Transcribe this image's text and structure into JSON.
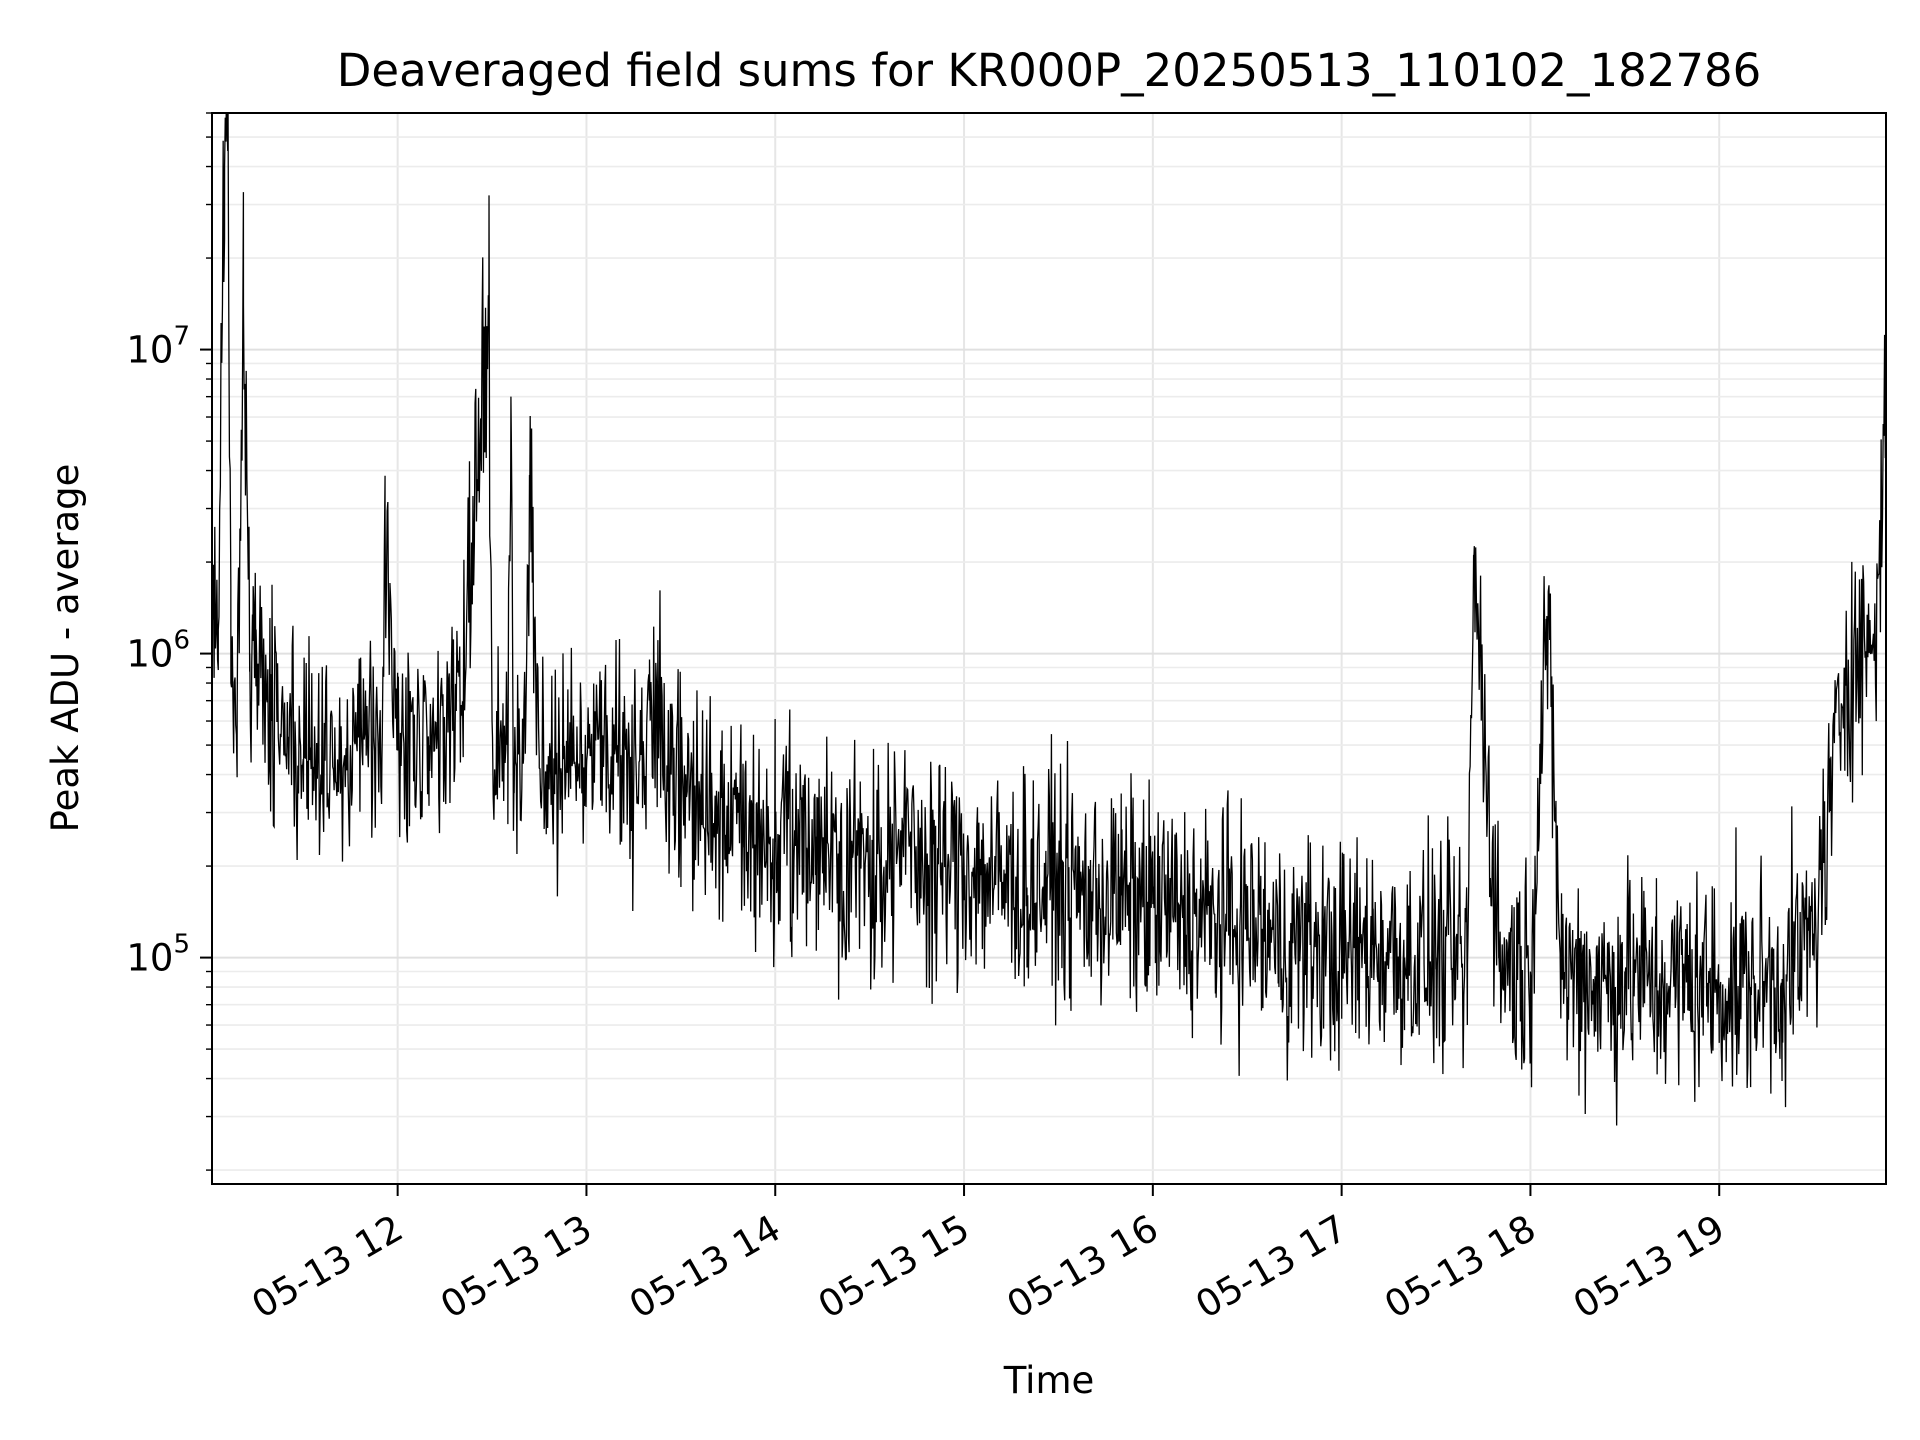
{
  "chart_data": {
    "type": "line",
    "title": "Deaveraged field sums for KR000P_20250513_110102_182786",
    "xlabel": "Time",
    "ylabel": "Peak ADU - average",
    "x_range": [
      "2025-05-13 11:01",
      "2025-05-13 19:53"
    ],
    "y_scale": "log",
    "ylim": [
      18000,
      60000000
    ],
    "grid": true,
    "x_ticks": [
      {
        "label": "05-13 12",
        "value": "2025-05-13 12:00"
      },
      {
        "label": "05-13 13",
        "value": "2025-05-13 13:00"
      },
      {
        "label": "05-13 14",
        "value": "2025-05-13 14:00"
      },
      {
        "label": "05-13 15",
        "value": "2025-05-13 15:00"
      },
      {
        "label": "05-13 16",
        "value": "2025-05-13 16:00"
      },
      {
        "label": "05-13 17",
        "value": "2025-05-13 17:00"
      },
      {
        "label": "05-13 18",
        "value": "2025-05-13 18:00"
      },
      {
        "label": "05-13 19",
        "value": "2025-05-13 19:00"
      }
    ],
    "y_ticks": [
      {
        "base": "10",
        "exponent": "5",
        "value": 100000
      },
      {
        "base": "10",
        "exponent": "6",
        "value": 1000000
      },
      {
        "base": "10",
        "exponent": "7",
        "value": 10000000
      }
    ],
    "series": [
      {
        "color": "#000000",
        "x": [
          "2025-05-13 11:01",
          "2025-05-13 11:03",
          "2025-05-13 11:05",
          "2025-05-13 11:06",
          "2025-05-13 11:07",
          "2025-05-13 11:08",
          "2025-05-13 11:09",
          "2025-05-13 11:11",
          "2025-05-13 11:13",
          "2025-05-13 11:14",
          "2025-05-13 11:15",
          "2025-05-13 11:17",
          "2025-05-13 11:20",
          "2025-05-13 11:25",
          "2025-05-13 11:30",
          "2025-05-13 11:35",
          "2025-05-13 11:40",
          "2025-05-13 11:42",
          "2025-05-13 11:45",
          "2025-05-13 11:50",
          "2025-05-13 11:55",
          "2025-05-13 11:56",
          "2025-05-13 12:00",
          "2025-05-13 12:10",
          "2025-05-13 12:16",
          "2025-05-13 12:20",
          "2025-05-13 12:29",
          "2025-05-13 12:30",
          "2025-05-13 12:35",
          "2025-05-13 12:36",
          "2025-05-13 12:37",
          "2025-05-13 12:40",
          "2025-05-13 12:42",
          "2025-05-13 12:45",
          "2025-05-13 12:55",
          "2025-05-13 13:00",
          "2025-05-13 13:10",
          "2025-05-13 13:19",
          "2025-05-13 13:20",
          "2025-05-13 13:30",
          "2025-05-13 13:40",
          "2025-05-13 13:50",
          "2025-05-13 14:00",
          "2025-05-13 14:10",
          "2025-05-13 14:13",
          "2025-05-13 14:20",
          "2025-05-13 14:30",
          "2025-05-13 14:40",
          "2025-05-13 14:50",
          "2025-05-13 15:00",
          "2025-05-13 15:10",
          "2025-05-13 15:20",
          "2025-05-13 15:30",
          "2025-05-13 15:31",
          "2025-05-13 15:40",
          "2025-05-13 15:50",
          "2025-05-13 16:00",
          "2025-05-13 16:10",
          "2025-05-13 16:20",
          "2025-05-13 16:30",
          "2025-05-13 16:40",
          "2025-05-13 16:50",
          "2025-05-13 17:00",
          "2025-05-13 17:10",
          "2025-05-13 17:20",
          "2025-05-13 17:30",
          "2025-05-13 17:40",
          "2025-05-13 17:42",
          "2025-05-13 17:50",
          "2025-05-13 18:00",
          "2025-05-13 18:05",
          "2025-05-13 18:10",
          "2025-05-13 18:20",
          "2025-05-13 18:27",
          "2025-05-13 18:30",
          "2025-05-13 18:40",
          "2025-05-13 18:50",
          "2025-05-13 19:00",
          "2025-05-13 19:10",
          "2025-05-13 19:20",
          "2025-05-13 19:25",
          "2025-05-13 19:30",
          "2025-05-13 19:35",
          "2025-05-13 19:40",
          "2025-05-13 19:45",
          "2025-05-13 19:50",
          "2025-05-13 19:53"
        ],
        "y": [
          1500000,
          1200000,
          40000000,
          45000000,
          800000,
          700000,
          650000,
          14000000,
          1000000,
          1100000,
          1200000,
          1000000,
          600000,
          500000,
          450000,
          450000,
          500000,
          400000,
          500000,
          500000,
          450000,
          2800000,
          480000,
          500000,
          550000,
          600000,
          15000000,
          600000,
          500000,
          7000000,
          400000,
          450000,
          3500000,
          450000,
          450000,
          420000,
          500000,
          400000,
          700000,
          350000,
          300000,
          250000,
          240000,
          230000,
          250000,
          220000,
          200000,
          230000,
          200000,
          200000,
          180000,
          170000,
          180000,
          170000,
          160000,
          160000,
          150000,
          140000,
          130000,
          130000,
          110000,
          110000,
          100000,
          110000,
          100000,
          100000,
          95000,
          2000000,
          100000,
          90000,
          1300000,
          90000,
          85000,
          80000,
          90000,
          80000,
          85000,
          80000,
          80000,
          85000,
          100000,
          120000,
          300000,
          900000,
          1000000,
          1200000,
          7500000
        ],
        "noise_factor": 3.5,
        "approx_points": 2400
      }
    ]
  }
}
